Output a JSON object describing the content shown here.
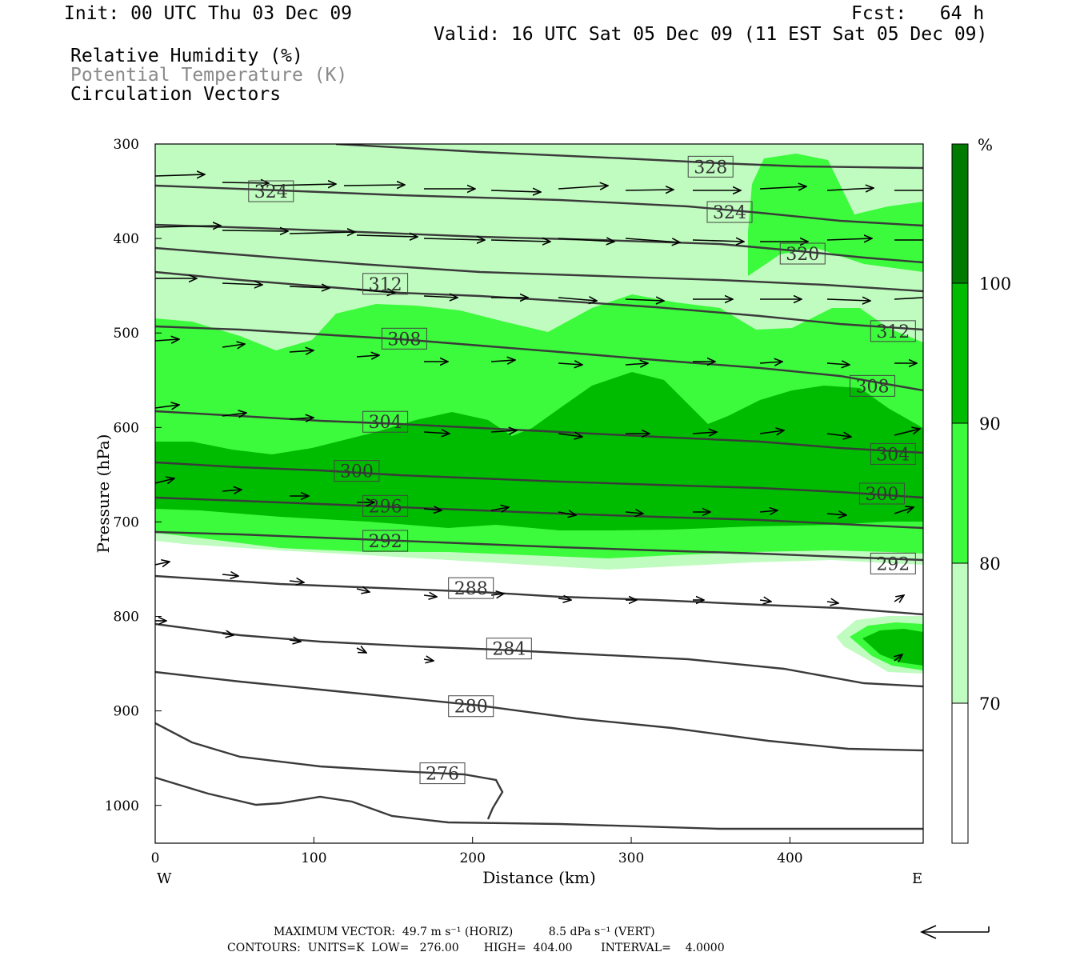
{
  "header": {
    "init": "Init: 00 UTC Thu 03 Dec 09",
    "fcst": "Fcst:   64 h",
    "valid": "Valid: 16 UTC Sat 05 Dec 09 (11 EST Sat 05 Dec 09)",
    "field1": "Relative Humidity (%)",
    "field2": "Potential Temperature (K)",
    "field3": "Circulation Vectors"
  },
  "footer": {
    "max_vector": "MAXIMUM VECTOR:  49.7 m s⁻¹ (HORIZ)          8.5 dPa s⁻¹ (VERT)",
    "contours": "CONTOURS:  UNITS=K  LOW=   276.00       HIGH=  404.00        INTERVAL=    4.0000"
  },
  "colors": {
    "rh70": "#c0fcc0",
    "rh80": "#3cfa3c",
    "rh90": "#00bc00",
    "rh100": "#007a00",
    "contour": "#3a3a3a"
  },
  "chart_data": {
    "type": "cross-section",
    "xlabel": "Distance (km)",
    "ylabel": "Pressure (hPa)",
    "xlim": [
      0,
      484
    ],
    "ylim": [
      1040,
      300
    ],
    "x_ticks": [
      "0",
      "100",
      "200",
      "300",
      "400"
    ],
    "y_ticks": [
      "300",
      "400",
      "500",
      "600",
      "700",
      "800",
      "900",
      "1000"
    ],
    "west_label": "W",
    "east_label": "E",
    "colorbar": {
      "unit": "%",
      "levels": [
        70,
        80,
        90,
        100
      ],
      "labels": [
        "70",
        "80",
        "90",
        "100"
      ]
    },
    "theta_labels": [
      {
        "text": "328",
        "x": 350,
        "p": 324
      },
      {
        "text": "324",
        "x": 73,
        "p": 350
      },
      {
        "text": "324",
        "x": 362,
        "p": 372
      },
      {
        "text": "320",
        "x": 408,
        "p": 416
      },
      {
        "text": "312",
        "x": 145,
        "p": 448
      },
      {
        "text": "312",
        "x": 465,
        "p": 498
      },
      {
        "text": "308",
        "x": 157,
        "p": 506
      },
      {
        "text": "308",
        "x": 452,
        "p": 556
      },
      {
        "text": "304",
        "x": 145,
        "p": 594
      },
      {
        "text": "304",
        "x": 465,
        "p": 628
      },
      {
        "text": "300",
        "x": 127,
        "p": 646
      },
      {
        "text": "300",
        "x": 458,
        "p": 670
      },
      {
        "text": "296",
        "x": 145,
        "p": 683
      },
      {
        "text": "292",
        "x": 145,
        "p": 720
      },
      {
        "text": "292",
        "x": 465,
        "p": 744
      },
      {
        "text": "288",
        "x": 199,
        "p": 770
      },
      {
        "text": "284",
        "x": 223,
        "p": 834
      },
      {
        "text": "280",
        "x": 199,
        "p": 895
      },
      {
        "text": "276",
        "x": 181,
        "p": 966
      }
    ]
  }
}
